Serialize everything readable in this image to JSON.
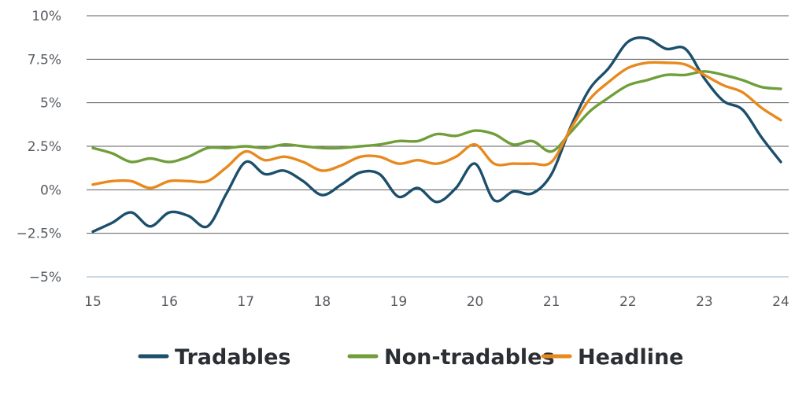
{
  "chart_data": {
    "type": "line",
    "title": "",
    "xlabel": "",
    "ylabel": "",
    "x_ticks": [
      "15",
      "16",
      "17",
      "18",
      "19",
      "20",
      "21",
      "22",
      "23",
      "24"
    ],
    "y_ticks": [
      {
        "value": 10,
        "label": "10%"
      },
      {
        "value": 7.5,
        "label": "7.5%"
      },
      {
        "value": 5,
        "label": "5%"
      },
      {
        "value": 2.5,
        "label": "2.5%"
      },
      {
        "value": 0,
        "label": "0%"
      },
      {
        "value": -2.5,
        "label": "−2.5%"
      },
      {
        "value": -5,
        "label": "−5%"
      }
    ],
    "xlim": [
      15,
      24
    ],
    "ylim": [
      -5,
      10
    ],
    "grid": true,
    "legend_position": "bottom",
    "series": [
      {
        "name": "Tradables",
        "color": "#1b4f6b",
        "points": [
          [
            15.0,
            -2.4
          ],
          [
            15.25,
            -1.9
          ],
          [
            15.5,
            -1.3
          ],
          [
            15.75,
            -2.1
          ],
          [
            16.0,
            -1.3
          ],
          [
            16.25,
            -1.5
          ],
          [
            16.5,
            -2.1
          ],
          [
            16.75,
            -0.2
          ],
          [
            17.0,
            1.6
          ],
          [
            17.25,
            0.9
          ],
          [
            17.5,
            1.1
          ],
          [
            17.75,
            0.5
          ],
          [
            18.0,
            -0.3
          ],
          [
            18.25,
            0.3
          ],
          [
            18.5,
            1.0
          ],
          [
            18.75,
            0.9
          ],
          [
            19.0,
            -0.4
          ],
          [
            19.25,
            0.1
          ],
          [
            19.5,
            -0.7
          ],
          [
            19.75,
            0.1
          ],
          [
            20.0,
            1.5
          ],
          [
            20.25,
            -0.6
          ],
          [
            20.5,
            -0.1
          ],
          [
            20.75,
            -0.2
          ],
          [
            21.0,
            0.9
          ],
          [
            21.25,
            3.6
          ],
          [
            21.5,
            5.8
          ],
          [
            21.75,
            7.0
          ],
          [
            22.0,
            8.5
          ],
          [
            22.25,
            8.7
          ],
          [
            22.5,
            8.1
          ],
          [
            22.75,
            8.1
          ],
          [
            23.0,
            6.4
          ],
          [
            23.25,
            5.1
          ],
          [
            23.5,
            4.6
          ],
          [
            23.75,
            3.0
          ],
          [
            24.0,
            1.6
          ]
        ]
      },
      {
        "name": "Non-tradables",
        "color": "#6f9e3a",
        "points": [
          [
            15.0,
            2.4
          ],
          [
            15.25,
            2.1
          ],
          [
            15.5,
            1.6
          ],
          [
            15.75,
            1.8
          ],
          [
            16.0,
            1.6
          ],
          [
            16.25,
            1.9
          ],
          [
            16.5,
            2.4
          ],
          [
            16.75,
            2.4
          ],
          [
            17.0,
            2.5
          ],
          [
            17.25,
            2.4
          ],
          [
            17.5,
            2.6
          ],
          [
            17.75,
            2.5
          ],
          [
            18.0,
            2.4
          ],
          [
            18.25,
            2.4
          ],
          [
            18.5,
            2.5
          ],
          [
            18.75,
            2.6
          ],
          [
            19.0,
            2.8
          ],
          [
            19.25,
            2.8
          ],
          [
            19.5,
            3.2
          ],
          [
            19.75,
            3.1
          ],
          [
            20.0,
            3.4
          ],
          [
            20.25,
            3.2
          ],
          [
            20.5,
            2.6
          ],
          [
            20.75,
            2.8
          ],
          [
            21.0,
            2.2
          ],
          [
            21.25,
            3.3
          ],
          [
            21.5,
            4.5
          ],
          [
            21.75,
            5.3
          ],
          [
            22.0,
            6.0
          ],
          [
            22.25,
            6.3
          ],
          [
            22.5,
            6.6
          ],
          [
            22.75,
            6.6
          ],
          [
            23.0,
            6.8
          ],
          [
            23.25,
            6.6
          ],
          [
            23.5,
            6.3
          ],
          [
            23.75,
            5.9
          ],
          [
            24.0,
            5.8
          ]
        ]
      },
      {
        "name": "Headline",
        "color": "#e8891e",
        "points": [
          [
            15.0,
            0.3
          ],
          [
            15.25,
            0.5
          ],
          [
            15.5,
            0.5
          ],
          [
            15.75,
            0.1
          ],
          [
            16.0,
            0.5
          ],
          [
            16.25,
            0.5
          ],
          [
            16.5,
            0.5
          ],
          [
            16.75,
            1.3
          ],
          [
            17.0,
            2.2
          ],
          [
            17.25,
            1.7
          ],
          [
            17.5,
            1.9
          ],
          [
            17.75,
            1.6
          ],
          [
            18.0,
            1.1
          ],
          [
            18.25,
            1.4
          ],
          [
            18.5,
            1.9
          ],
          [
            18.75,
            1.9
          ],
          [
            19.0,
            1.5
          ],
          [
            19.25,
            1.7
          ],
          [
            19.5,
            1.5
          ],
          [
            19.75,
            1.9
          ],
          [
            20.0,
            2.6
          ],
          [
            20.25,
            1.5
          ],
          [
            20.5,
            1.5
          ],
          [
            20.75,
            1.5
          ],
          [
            21.0,
            1.6
          ],
          [
            21.25,
            3.5
          ],
          [
            21.5,
            5.2
          ],
          [
            21.75,
            6.2
          ],
          [
            22.0,
            7.0
          ],
          [
            22.25,
            7.3
          ],
          [
            22.5,
            7.3
          ],
          [
            22.75,
            7.2
          ],
          [
            23.0,
            6.6
          ],
          [
            23.25,
            6.0
          ],
          [
            23.5,
            5.6
          ],
          [
            23.75,
            4.7
          ],
          [
            24.0,
            4.0
          ]
        ]
      }
    ]
  }
}
